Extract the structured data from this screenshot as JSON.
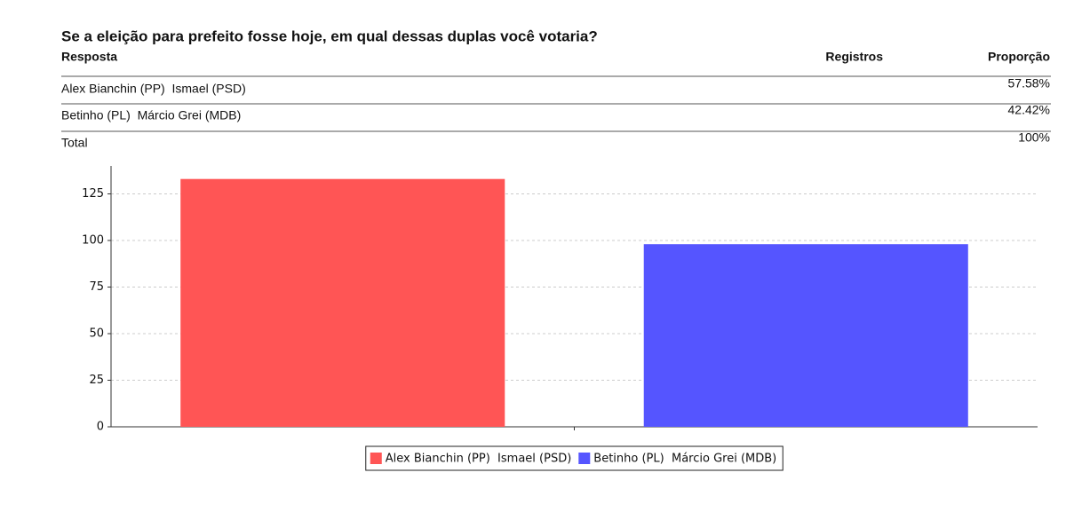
{
  "header": {
    "title": "Se a eleição para prefeito fosse hoje, em qual dessas duplas você votaria?"
  },
  "table": {
    "columns": [
      "Resposta",
      "Registros",
      "Proporção"
    ],
    "rows": [
      [
        "Alex Bianchin (PP)  Ismael (PSD)",
        "57.58%"
      ],
      [
        "Betinho (PL)  Márcio Grei (MDB)",
        "42.42%"
      ]
    ],
    "total": [
      "Total",
      "100%"
    ]
  },
  "chart_data": {
    "type": "bar",
    "categories": [
      "Alex Bianchin (PP)  Ismael (PSD)",
      "Betinho (PL)  Márcio Grei (MDB)"
    ],
    "values": [
      133,
      98
    ],
    "colors": [
      "#ff5555",
      "#5555ff"
    ],
    "ylim": [
      0,
      140
    ],
    "yticks": [
      0,
      25,
      50,
      75,
      100,
      125
    ],
    "grid": true,
    "legend": "bottom"
  }
}
